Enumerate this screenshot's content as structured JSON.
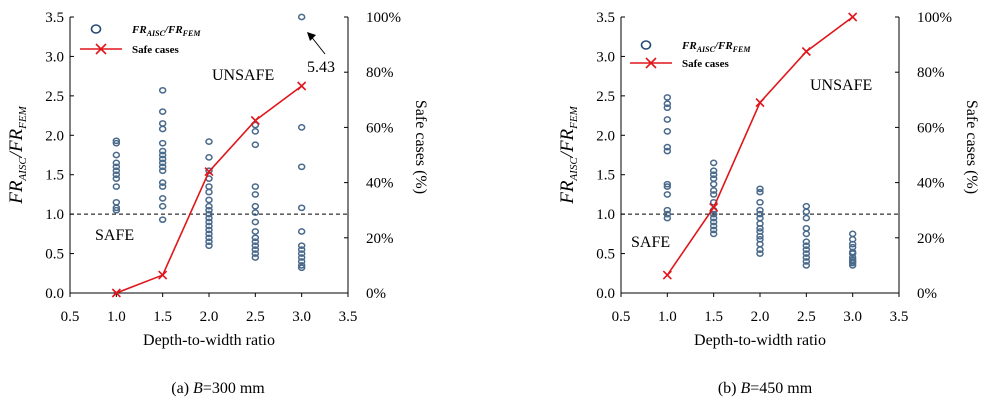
{
  "chart_data": [
    {
      "type": "scatter",
      "caption_prefix": "(a) ",
      "caption_var": "B",
      "caption_rest": "=300 mm",
      "xlabel": "Depth-to-width ratio",
      "ylabel_main": "FR",
      "ylabel_sub1": "AISC",
      "ylabel_mid": "/FR",
      "ylabel_sub2": "FEM",
      "y2label": "Safe cases (%)",
      "xlim": [
        0.5,
        3.5
      ],
      "ylim": [
        0,
        3.5
      ],
      "y2lim": [
        0,
        100
      ],
      "xticks": [
        "0.5",
        "1.0",
        "1.5",
        "2.0",
        "2.5",
        "3.0",
        "3.5"
      ],
      "yticks": [
        "0.0",
        "0.5",
        "1.0",
        "1.5",
        "2.0",
        "2.5",
        "3.0",
        "3.5"
      ],
      "y2ticks": [
        "0%",
        "20%",
        "40%",
        "60%",
        "80%",
        "100%"
      ],
      "reference_line_y": 1.0,
      "legend": {
        "scatter": "FR_AISC/FR_FEM",
        "line": "Safe cases",
        "position": "top-left"
      },
      "legend_scatter_main1": "FR",
      "legend_scatter_sub1": "AISC",
      "legend_scatter_main2": "/FR",
      "legend_scatter_sub2": "FEM",
      "annotations": {
        "safe": "SAFE",
        "unsafe": "UNSAFE",
        "outlier": "5.43"
      },
      "scatter": [
        {
          "x": 1.0,
          "y": [
            1.93,
            1.9,
            1.75,
            1.65,
            1.6,
            1.55,
            1.5,
            1.45,
            1.35,
            1.15,
            1.08,
            1.05
          ]
        },
        {
          "x": 1.5,
          "y": [
            2.57,
            2.3,
            2.15,
            2.08,
            1.9,
            1.8,
            1.75,
            1.7,
            1.65,
            1.6,
            1.55,
            1.4,
            1.35,
            1.2,
            1.1,
            0.93
          ]
        },
        {
          "x": 2.0,
          "y": [
            1.92,
            1.72,
            1.55,
            1.45,
            1.35,
            1.28,
            1.18,
            1.1,
            1.05,
            1.0,
            0.95,
            0.9,
            0.85,
            0.8,
            0.75,
            0.7,
            0.65,
            0.6
          ]
        },
        {
          "x": 2.5,
          "y": [
            2.13,
            2.05,
            1.88,
            1.35,
            1.25,
            1.1,
            1.02,
            0.9,
            0.78,
            0.7,
            0.65,
            0.6,
            0.55,
            0.5,
            0.45
          ]
        },
        {
          "x": 3.0,
          "y": [
            3.5,
            2.1,
            1.6,
            1.08,
            0.78,
            0.6,
            0.55,
            0.5,
            0.45,
            0.4,
            0.35,
            0.32
          ]
        }
      ],
      "safe_cases_pct": [
        {
          "x": 1.0,
          "y": 0
        },
        {
          "x": 1.5,
          "y": 6.5
        },
        {
          "x": 2.0,
          "y": 44
        },
        {
          "x": 2.5,
          "y": 62.5
        },
        {
          "x": 3.0,
          "y": 75
        }
      ]
    },
    {
      "type": "scatter",
      "caption_prefix": "(b) ",
      "caption_var": "B",
      "caption_rest": "=450 mm",
      "xlabel": "Depth-to-width ratio",
      "ylabel_main": "FR",
      "ylabel_sub1": "AISC",
      "ylabel_mid": "/FR",
      "ylabel_sub2": "FEM",
      "y2label": "Safe cases (%)",
      "xlim": [
        0.5,
        3.5
      ],
      "ylim": [
        0,
        3.5
      ],
      "y2lim": [
        0,
        100
      ],
      "xticks": [
        "0.5",
        "1.0",
        "1.5",
        "2.0",
        "2.5",
        "3.0",
        "3.5"
      ],
      "yticks": [
        "0.0",
        "0.5",
        "1.0",
        "1.5",
        "2.0",
        "2.5",
        "3.0",
        "3.5"
      ],
      "y2ticks": [
        "0%",
        "20%",
        "40%",
        "60%",
        "80%",
        "100%"
      ],
      "reference_line_y": 1.0,
      "legend": {
        "scatter": "FR_AISC/FR_FEM",
        "line": "Safe cases",
        "position": "top-left"
      },
      "legend_scatter_main1": "FR",
      "legend_scatter_sub1": "AISC",
      "legend_scatter_main2": "/FR",
      "legend_scatter_sub2": "FEM",
      "annotations": {
        "safe": "SAFE",
        "unsafe": "UNSAFE"
      },
      "scatter": [
        {
          "x": 1.0,
          "y": [
            2.48,
            2.4,
            2.35,
            2.2,
            2.05,
            1.85,
            1.8,
            1.38,
            1.35,
            1.25,
            1.05,
            1.0,
            0.95
          ]
        },
        {
          "x": 1.5,
          "y": [
            1.65,
            1.55,
            1.5,
            1.45,
            1.38,
            1.3,
            1.25,
            1.15,
            1.05,
            1.0,
            0.95,
            0.9,
            0.85,
            0.8,
            0.75
          ]
        },
        {
          "x": 2.0,
          "y": [
            1.32,
            1.28,
            1.15,
            1.05,
            1.0,
            0.95,
            0.88,
            0.82,
            0.78,
            0.72,
            0.68,
            0.62,
            0.55,
            0.5
          ]
        },
        {
          "x": 2.5,
          "y": [
            1.1,
            1.03,
            0.95,
            0.82,
            0.75,
            0.65,
            0.6,
            0.55,
            0.5,
            0.45,
            0.4,
            0.35
          ]
        },
        {
          "x": 3.0,
          "y": [
            0.75,
            0.68,
            0.62,
            0.58,
            0.52,
            0.5,
            0.45,
            0.42,
            0.4,
            0.38,
            0.35
          ]
        }
      ],
      "safe_cases_pct": [
        {
          "x": 1.0,
          "y": 6.5
        },
        {
          "x": 1.5,
          "y": 31
        },
        {
          "x": 2.0,
          "y": 69
        },
        {
          "x": 2.5,
          "y": 87.5
        },
        {
          "x": 3.0,
          "y": 100
        }
      ]
    }
  ]
}
